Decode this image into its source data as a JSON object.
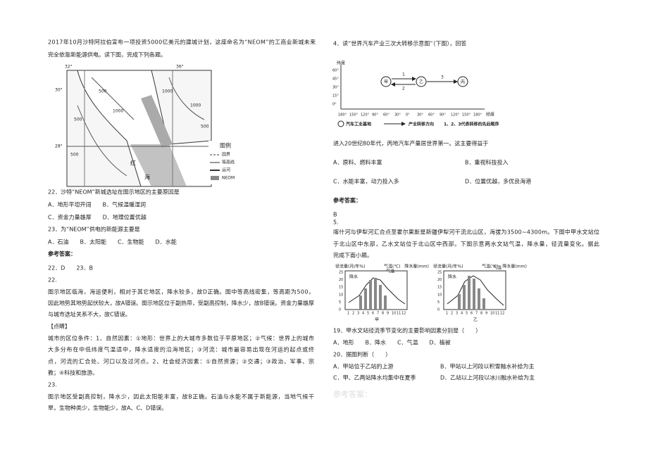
{
  "left": {
    "intro": [
      "2017年10月沙特阿拉伯宣布一项投资5000亿美元的建城计划，这座命名为“NEOM”的工商业新城未来",
      "完全依靠新能源供电。读下图，完成下列各题。"
    ],
    "map": {
      "lon": [
        "32°",
        "36°"
      ],
      "lat": [
        "30°",
        "28°"
      ],
      "contours": [
        "500",
        "1000",
        "500",
        "1000",
        "1000",
        "500",
        "500"
      ],
      "sea": [
        "红",
        "海"
      ],
      "legend_title": "图例",
      "legend": [
        "国界",
        "等高线",
        "运河",
        "NEOM"
      ]
    },
    "q22": {
      "stem": "22．沙特“NEOM”新城选址在图示地区的主要原因是",
      "options": [
        "A．地形平坦开阔　　B．气候温暖湿润",
        "C．资金力量雄厚　　D．地理位置优越"
      ]
    },
    "q23": {
      "stem": "23．为“NEOM”供电的新能源主要是",
      "options": [
        "A．石油　　B．太阳能　　C．生物能　　D．水能"
      ]
    },
    "answer_title": "参考答案：",
    "answers": "22．D　　23．B",
    "explain22_no": "22.",
    "explain22": [
      "图示地区临海，海运便利，相对于其它地区，降水较多，故D正确。图中等高线密集，等高距为500，",
      "因此地势其地势起伏较大，故A错误。图示地区位于副热带，受副高控制，降水少，故B错误。资金力量雄厚",
      "与城市选址关系不大，故C错误。"
    ],
    "tip_title": "【点睛】",
    "tip": [
      "城市的区位条件：1、自然因素：①地形：世界上的大城市多数位于平原地区；②气候：世界上的城市",
      "大多分布在中低纬度气温适中，降水适度的沿海地区；③河流：城市最容易出现在河运的起点或终",
      "点，河流的汇合处、河口以及过河点。2、社会经济因素：①自然资源；②交通；③政治、军事、宗",
      "教；④科技和旅游。"
    ],
    "explain23_no": "23.",
    "explain23": [
      "图示地区受副高控制，降水少，因此太阳能丰富，故B正确。石油与水能不属于新能源，当地气候干",
      "旱，生物种类少，生物能少，故A、C、D错误。"
    ]
  },
  "right": {
    "q4": "4．读“世界汽车产业三次大转移示意图”（下图），回答",
    "diagram": {
      "ylabel": "纬度",
      "lat": [
        "60°",
        "45°",
        "30°",
        "15°",
        "0°"
      ],
      "lon": [
        "180°",
        "150°",
        "120°",
        "90°",
        "60°",
        "30°",
        "0°",
        "30°",
        "60°",
        "90°",
        "120°",
        "150°",
        "180°"
      ],
      "xlabel": "经度",
      "nodes": [
        "甲",
        "乙",
        "丙"
      ],
      "arrows": [
        "1",
        "2",
        "3"
      ],
      "legend": [
        "汽车工业基地",
        "产业转移方向",
        "1、2、3代表转移的先后顺序"
      ]
    },
    "q4_stem": "进入20世纪80年代，丙地汽车产量居世界第一。这主要得益于",
    "q4_options": [
      "A．原料、燃料丰富",
      "B．重视科技投入",
      "C．水能丰富，动力投入多",
      "D．位置优越，多优良海港"
    ],
    "answer_title": "参考答案：",
    "answer": "B",
    "q5_no": "5.",
    "q5_text": [
      "喀什河与伊犁河汇合点至霍尔果斯是新疆伊犁河干流北山区，海拔为3500~4300m。下图中甲水文站位",
      "于北山区中东部，乙水文站位于北山区中西部。下图示意两水文站气温，降水量，径流量变化。据此",
      "完成下面小题。"
    ],
    "charts": {
      "left_label": "径流量(月/年%)",
      "right_label": "气温(℃)　降水量(mm)",
      "yticks": [
        "25",
        "20",
        "15",
        "10",
        "5",
        "0"
      ],
      "months": [
        "1",
        "2",
        "3",
        "4",
        "5",
        "6",
        "7",
        "8",
        "9",
        "10",
        "11",
        "12"
      ],
      "precip": "降水",
      "temp": "气温",
      "names": [
        "甲",
        "乙"
      ]
    },
    "q19": {
      "stem": "19．甲水文站径流季节变化的主要影响因素分别是（　　）",
      "options": [
        "A．地形　　B．降水　　C．气温　　D．植被"
      ]
    },
    "q20": {
      "stem": "20．据图判断（　　）",
      "options": [
        "A．甲站位于乙站的上游",
        "B．甲站以上河段以积雪融水补给为主",
        "C．甲、乙两站降水均集中在夏季",
        "D．乙站以上河段以冰川融水补给为主"
      ]
    },
    "faded": "参考答案："
  }
}
